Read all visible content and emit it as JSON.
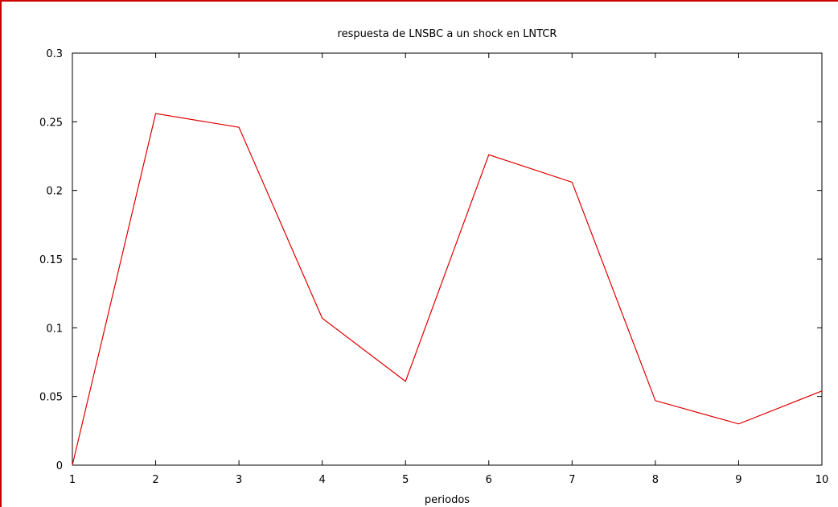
{
  "chart_data": {
    "type": "line",
    "title": "respuesta de LNSBC a un shock en LNTCR",
    "xlabel": "periodos",
    "ylabel": "",
    "x": [
      1,
      2,
      3,
      4,
      5,
      6,
      7,
      8,
      9,
      10
    ],
    "series": [
      {
        "values": [
          0,
          0.256,
          0.246,
          0.107,
          0.061,
          0.226,
          0.206,
          0.047,
          0.03,
          0.054
        ]
      }
    ],
    "xlim": [
      1,
      10
    ],
    "ylim": [
      0,
      0.3
    ],
    "xticks": [
      "1",
      "2",
      "3",
      "4",
      "5",
      "6",
      "7",
      "8",
      "9",
      "10"
    ],
    "yticks": [
      "0",
      "0.05",
      "0.1",
      "0.15",
      "0.2",
      "0.25",
      "0.3"
    ],
    "grid": false,
    "legend": "none",
    "colors": {
      "line": "#e00000",
      "frame": "#cc0000",
      "axes": "#000000"
    }
  }
}
